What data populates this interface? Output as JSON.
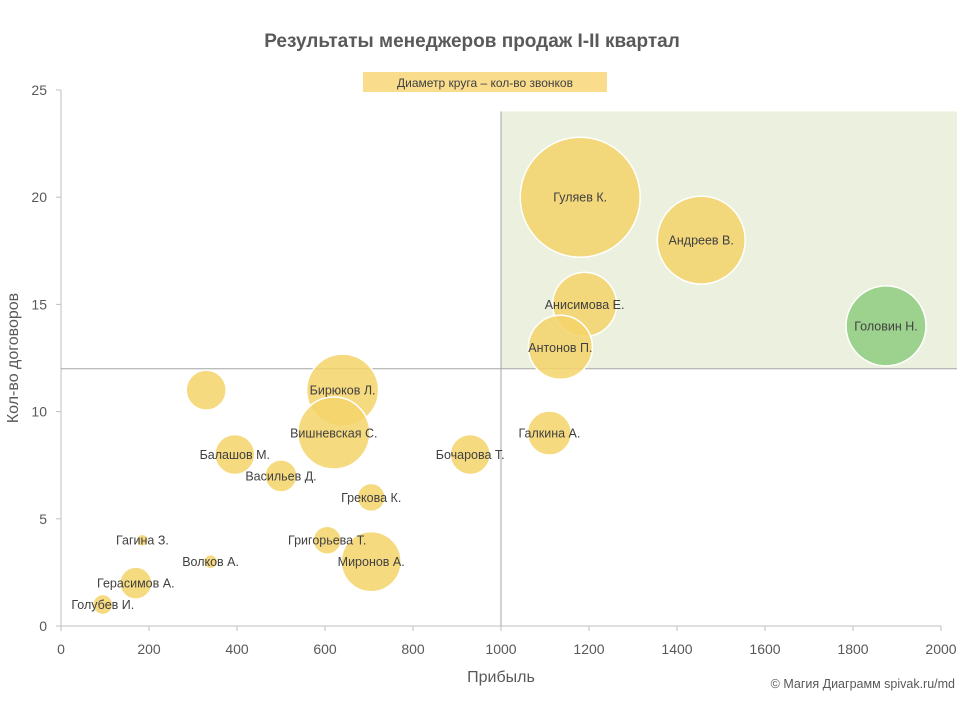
{
  "chart_data": {
    "type": "scatter",
    "subtype": "bubble",
    "title": "Результаты менеджеров продаж I-II квартал",
    "xlabel": "Прибыль",
    "ylabel": "Кол-во договоров",
    "xlim": [
      0,
      2000
    ],
    "ylim": [
      0,
      25
    ],
    "xticks": [
      0,
      200,
      400,
      600,
      800,
      1000,
      1200,
      1400,
      1600,
      1800,
      2000
    ],
    "yticks": [
      0,
      5,
      10,
      15,
      20,
      25
    ],
    "grid": false,
    "legend": {
      "text": "Диаметр круга – кол-во звонков",
      "placement": "top-center"
    },
    "reference_lines": {
      "x": 1000,
      "y": 12
    },
    "highlight_region": {
      "x": [
        1000,
        2000
      ],
      "y": [
        12,
        24
      ],
      "color": "#ebf1de"
    },
    "colors": {
      "bubble": "#f4d36a",
      "highlight_bubble": "#8fcc80",
      "region": "#ebf1de",
      "legend_bg": "#f9dc8c",
      "line": "#a6a6a6"
    },
    "points": [
      {
        "name": "Гуляев К.",
        "x": 1180,
        "y": 20,
        "size": 60,
        "label_pos": "center"
      },
      {
        "name": "Андреев В.",
        "x": 1455,
        "y": 18,
        "size": 44,
        "label_pos": "center"
      },
      {
        "name": "Анисимова Е.",
        "x": 1190,
        "y": 15,
        "size": 32,
        "label_pos": "center"
      },
      {
        "name": "Головин Н.",
        "x": 1875,
        "y": 14,
        "size": 40,
        "label_pos": "center",
        "highlight": true
      },
      {
        "name": "Антонов П.",
        "x": 1135,
        "y": 13,
        "size": 32,
        "label_pos": "center"
      },
      {
        "name": "Бирюков Л.",
        "x": 640,
        "y": 11,
        "size": 36,
        "label_pos": "center"
      },
      {
        "name": "",
        "x": 330,
        "y": 11,
        "size": 20,
        "label_pos": "none"
      },
      {
        "name": "Вишневская С.",
        "x": 620,
        "y": 9,
        "size": 36,
        "label_pos": "center"
      },
      {
        "name": "Галкина А.",
        "x": 1110,
        "y": 9,
        "size": 22,
        "label_pos": "center"
      },
      {
        "name": "Балашов М.",
        "x": 395,
        "y": 8,
        "size": 20,
        "label_pos": "center"
      },
      {
        "name": "Бочарова Т.",
        "x": 930,
        "y": 8,
        "size": 20,
        "label_pos": "center"
      },
      {
        "name": "Васильев Д.",
        "x": 500,
        "y": 7,
        "size": 16,
        "label_pos": "center"
      },
      {
        "name": "Грекова К.",
        "x": 705,
        "y": 6,
        "size": 14,
        "label_pos": "center"
      },
      {
        "name": "Григорьева Т.",
        "x": 605,
        "y": 4,
        "size": 14,
        "label_pos": "center"
      },
      {
        "name": "Гагина З.",
        "x": 185,
        "y": 4,
        "size": 6,
        "label_pos": "center"
      },
      {
        "name": "Миронов А.",
        "x": 705,
        "y": 3,
        "size": 30,
        "label_pos": "center"
      },
      {
        "name": "Волков А.",
        "x": 340,
        "y": 3,
        "size": 7,
        "label_pos": "center"
      },
      {
        "name": "Герасимов А.",
        "x": 170,
        "y": 2,
        "size": 16,
        "label_pos": "center"
      },
      {
        "name": "Голубев И.",
        "x": 95,
        "y": 1,
        "size": 10,
        "label_pos": "center"
      }
    ]
  },
  "footer": {
    "copyright": "© Магия Диаграмм spivak.ru/md"
  }
}
